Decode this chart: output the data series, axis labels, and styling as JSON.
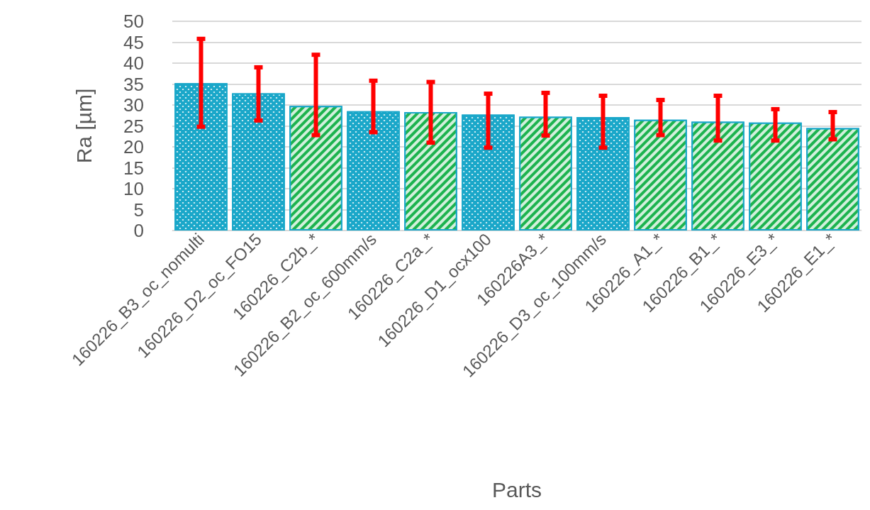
{
  "chart_data": {
    "type": "bar",
    "xlabel": "Parts",
    "ylabel": "Ra [µm]",
    "categories": [
      "160226_B3_oc_nomulti",
      "160226_D2_oc_FO15",
      "160226_C2b_*",
      "160226_B2_oc_600mm/s",
      "160226_C2a_*",
      "160226_D1_ocx100",
      "160226A3_*",
      "160226_D3_oc_100mm/s",
      "160226_A1_*",
      "160226_B1_*",
      "160226_E3_*",
      "160226_E1_*"
    ],
    "values": [
      35.2,
      32.8,
      29.8,
      28.5,
      28.3,
      27.7,
      27.2,
      27.1,
      26.5,
      26.0,
      25.8,
      24.5
    ],
    "colors": [
      "#1aa7c9",
      "#1aa7c9",
      "#1db34f",
      "#1aa7c9",
      "#1db34f",
      "#1aa7c9",
      "#1db34f",
      "#1aa7c9",
      "#1db34f",
      "#1db34f",
      "#1db34f",
      "#1db34f"
    ],
    "errors": [
      [
        24.8,
        45.8
      ],
      [
        26.3,
        39.0
      ],
      [
        22.8,
        42.0
      ],
      [
        23.5,
        35.8
      ],
      [
        21.0,
        35.5
      ],
      [
        19.8,
        32.7
      ],
      [
        22.7,
        32.9
      ],
      [
        19.8,
        32.2
      ],
      [
        22.8,
        31.2
      ],
      [
        21.5,
        32.2
      ],
      [
        21.5,
        29.0
      ],
      [
        21.8,
        28.3
      ]
    ],
    "ylim": [
      0,
      50
    ],
    "yticks": [
      0,
      5,
      10,
      15,
      20,
      25,
      30,
      35,
      40,
      45,
      50
    ],
    "grid": "y"
  }
}
